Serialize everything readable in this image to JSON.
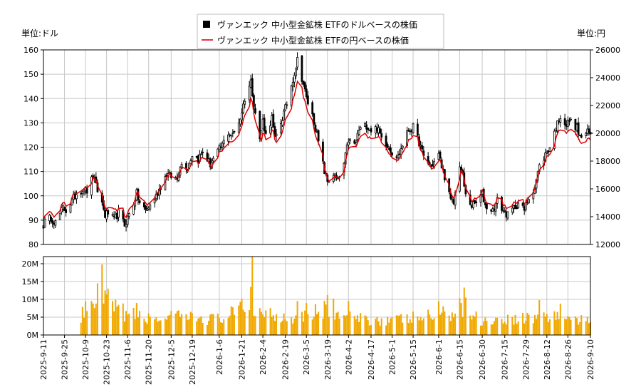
{
  "chart_data": {
    "type": "candlestick",
    "legend": {
      "placement": "top-center",
      "entries": [
        {
          "label": "ヴァンエック 中小型金鉱株 ETFのドルベースの株価",
          "marker": "square",
          "color": "#000000"
        },
        {
          "label": "ヴァンエック 中小型金鉱株 ETFの円ベースの株価",
          "marker": "line",
          "color": "#e00000"
        }
      ]
    },
    "left_unit": "単位:ドル",
    "right_unit": "単位:円",
    "grid": true,
    "price_axis": {
      "ylim": [
        80,
        160
      ],
      "ticks": [
        80,
        90,
        100,
        110,
        120,
        130,
        140,
        150,
        160
      ]
    },
    "yen_axis": {
      "ylim": [
        12000,
        26000
      ],
      "ticks": [
        12000,
        14000,
        16000,
        18000,
        20000,
        22000,
        24000,
        26000
      ]
    },
    "volume_axis": {
      "ylim": [
        0,
        22000000
      ],
      "ticks": [
        0,
        5000000,
        10000000,
        15000000,
        20000000
      ],
      "tick_labels": [
        "0M",
        "5M",
        "10M",
        "15M",
        "20M"
      ]
    },
    "x_axis": {
      "start": "2025-09-11",
      "end": "2026-09-10",
      "ticks": [
        "2025-9-11",
        "2025-9-25",
        "2025-10-9",
        "2025-10-23",
        "2025-11-6",
        "2025-11-20",
        "2025-12-5",
        "2025-12-19",
        "2026-1-6",
        "2026-1-21",
        "2026-2-4",
        "2026-2-19",
        "2026-3-5",
        "2026-3-19",
        "2026-4-2",
        "2026-4-17",
        "2026-5-1",
        "2026-5-15",
        "2026-6-1",
        "2026-6-15",
        "2026-6-30",
        "2026-7-15",
        "2026-7-29",
        "2026-8-12",
        "2026-8-26",
        "2026-9-10"
      ]
    },
    "price_path": [
      [
        "2025-09-11",
        89
      ],
      [
        "2025-09-16",
        91
      ],
      [
        "2025-09-19",
        89
      ],
      [
        "2025-09-24",
        95
      ],
      [
        "2025-09-26",
        94
      ],
      [
        "2025-09-30",
        98
      ],
      [
        "2025-10-03",
        101
      ],
      [
        "2025-10-08",
        103
      ],
      [
        "2025-10-10",
        102
      ],
      [
        "2025-10-14",
        108
      ],
      [
        "2025-10-16",
        104
      ],
      [
        "2025-10-20",
        97
      ],
      [
        "2025-10-22",
        92
      ],
      [
        "2025-10-24",
        93
      ],
      [
        "2025-10-28",
        90
      ],
      [
        "2025-10-31",
        93
      ],
      [
        "2025-11-04",
        88
      ],
      [
        "2025-11-06",
        91
      ],
      [
        "2025-11-10",
        97
      ],
      [
        "2025-11-12",
        101
      ],
      [
        "2025-11-14",
        97
      ],
      [
        "2025-11-18",
        94
      ],
      [
        "2025-11-21",
        96
      ],
      [
        "2025-11-25",
        100
      ],
      [
        "2025-11-28",
        104
      ],
      [
        "2025-12-02",
        109
      ],
      [
        "2025-12-05",
        108
      ],
      [
        "2025-12-09",
        107
      ],
      [
        "2025-12-11",
        113
      ],
      [
        "2025-12-16",
        112
      ],
      [
        "2025-12-19",
        117
      ],
      [
        "2025-12-23",
        115
      ],
      [
        "2025-12-26",
        118
      ],
      [
        "2025-12-31",
        113
      ],
      [
        "2026-01-05",
        118
      ],
      [
        "2026-01-08",
        121
      ],
      [
        "2026-01-12",
        126
      ],
      [
        "2026-01-15",
        125
      ],
      [
        "2026-01-20",
        132
      ],
      [
        "2026-01-23",
        140
      ],
      [
        "2026-01-27",
        147
      ],
      [
        "2026-01-29",
        138
      ],
      [
        "2026-02-02",
        123
      ],
      [
        "2026-02-04",
        131
      ],
      [
        "2026-02-06",
        125
      ],
      [
        "2026-02-10",
        132
      ],
      [
        "2026-02-12",
        123
      ],
      [
        "2026-02-17",
        132
      ],
      [
        "2026-02-20",
        138
      ],
      [
        "2026-02-24",
        148
      ],
      [
        "2026-02-27",
        156
      ],
      [
        "2026-03-03",
        146
      ],
      [
        "2026-03-05",
        140
      ],
      [
        "2026-03-09",
        133
      ],
      [
        "2026-03-11",
        128
      ],
      [
        "2026-03-13",
        122
      ],
      [
        "2026-03-17",
        110
      ],
      [
        "2026-03-19",
        106
      ],
      [
        "2026-03-23",
        109
      ],
      [
        "2026-03-26",
        106
      ],
      [
        "2026-03-30",
        113
      ],
      [
        "2026-04-02",
        123
      ],
      [
        "2026-04-06",
        121
      ],
      [
        "2026-04-09",
        127
      ],
      [
        "2026-04-14",
        129
      ],
      [
        "2026-04-17",
        127
      ],
      [
        "2026-04-21",
        128
      ],
      [
        "2026-04-24",
        124
      ],
      [
        "2026-04-28",
        121
      ],
      [
        "2026-05-01",
        118
      ],
      [
        "2026-05-05",
        116
      ],
      [
        "2026-05-08",
        121
      ],
      [
        "2026-05-12",
        127
      ],
      [
        "2026-05-15",
        128
      ],
      [
        "2026-05-19",
        122
      ],
      [
        "2026-05-22",
        116
      ],
      [
        "2026-05-27",
        112
      ],
      [
        "2026-06-01",
        117
      ],
      [
        "2026-06-03",
        112
      ],
      [
        "2026-06-05",
        108
      ],
      [
        "2026-06-09",
        98
      ],
      [
        "2026-06-11",
        97
      ],
      [
        "2026-06-15",
        113
      ],
      [
        "2026-06-17",
        108
      ],
      [
        "2026-06-19",
        100
      ],
      [
        "2026-06-23",
        96
      ],
      [
        "2026-06-26",
        97
      ],
      [
        "2026-06-30",
        101
      ],
      [
        "2026-07-02",
        96
      ],
      [
        "2026-07-07",
        94
      ],
      [
        "2026-07-10",
        98
      ],
      [
        "2026-07-14",
        94
      ],
      [
        "2026-07-17",
        92
      ],
      [
        "2026-07-21",
        95
      ],
      [
        "2026-07-24",
        97
      ],
      [
        "2026-07-28",
        94
      ],
      [
        "2026-07-30",
        98
      ],
      [
        "2026-08-04",
        104
      ],
      [
        "2026-08-07",
        112
      ],
      [
        "2026-08-11",
        117
      ],
      [
        "2026-08-14",
        120
      ],
      [
        "2026-08-18",
        128
      ],
      [
        "2026-08-21",
        133
      ],
      [
        "2026-08-25",
        129
      ],
      [
        "2026-08-27",
        131
      ],
      [
        "2026-09-01",
        128
      ],
      [
        "2026-09-03",
        124
      ],
      [
        "2026-09-08",
        126
      ],
      [
        "2026-09-10",
        125
      ]
    ],
    "volume_start": "2025-10-06",
    "volume_levels": [
      [
        "2025-10-06",
        5500000
      ],
      [
        "2025-10-22",
        8500000
      ],
      [
        "2025-11-05",
        6000000
      ],
      [
        "2025-11-20",
        4500000
      ],
      [
        "2025-12-10",
        5000000
      ],
      [
        "2026-01-05",
        4500000
      ],
      [
        "2026-01-26",
        7500000
      ],
      [
        "2026-02-20",
        5000000
      ],
      [
        "2026-03-17",
        7000000
      ],
      [
        "2026-04-06",
        4500000
      ],
      [
        "2026-05-04",
        4200000
      ],
      [
        "2026-06-01",
        5500000
      ],
      [
        "2026-06-15",
        7000000
      ],
      [
        "2026-07-01",
        4000000
      ],
      [
        "2026-08-03",
        5000000
      ],
      [
        "2026-08-17",
        5500000
      ],
      [
        "2026-09-10",
        3500000
      ]
    ],
    "volume_spikes": [
      [
        "2025-10-09",
        9500000
      ],
      [
        "2025-10-17",
        14500000
      ],
      [
        "2025-10-20",
        19800000
      ],
      [
        "2025-10-22",
        12500000
      ],
      [
        "2025-10-24",
        13000000
      ],
      [
        "2025-11-12",
        9000000
      ],
      [
        "2026-01-21",
        10200000
      ],
      [
        "2026-01-27",
        13500000
      ],
      [
        "2026-01-28",
        22000000
      ],
      [
        "2026-02-27",
        9500000
      ],
      [
        "2026-03-05",
        9000000
      ],
      [
        "2026-03-19",
        11200000
      ],
      [
        "2026-03-23",
        10200000
      ],
      [
        "2026-04-02",
        9500000
      ],
      [
        "2026-06-01",
        9500000
      ],
      [
        "2026-06-15",
        10300000
      ],
      [
        "2026-06-18",
        13300000
      ],
      [
        "2026-06-19",
        10500000
      ],
      [
        "2026-08-07",
        9800000
      ],
      [
        "2026-08-21",
        8800000
      ]
    ]
  }
}
